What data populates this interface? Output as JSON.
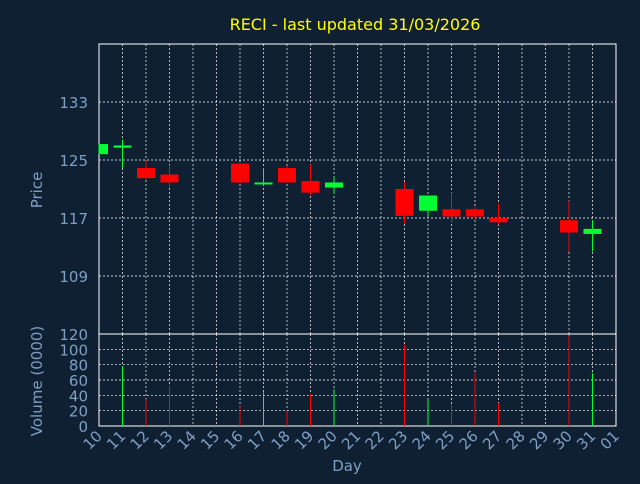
{
  "title": "RECI - last updated 31/03/2026",
  "colors": {
    "background": "#102033",
    "title": "#ffff00",
    "axis_text": "#7f9fc4",
    "grid": "#ffffff",
    "up": "#00ff33",
    "down": "#ff0000"
  },
  "chart_data": [
    {
      "type": "candlestick",
      "ylabel": "Price",
      "ylim": [
        101,
        141
      ],
      "yticks": [
        109,
        117,
        125,
        133
      ],
      "grid": true,
      "x_dates": [
        "10",
        "11",
        "12",
        "13",
        "14",
        "15",
        "16",
        "17",
        "18",
        "19",
        "20",
        "21",
        "22",
        "23",
        "24",
        "25",
        "26",
        "27",
        "28",
        "29",
        "30",
        "31",
        "01"
      ],
      "candles": [
        {
          "day": "10",
          "open": 125.8,
          "high": 127.2,
          "low": 125.8,
          "close": 127.2
        },
        {
          "day": "11",
          "open": 126.7,
          "high": 127.8,
          "low": 123.9,
          "close": 127.0
        },
        {
          "day": "12",
          "open": 123.9,
          "high": 124.9,
          "low": 122.3,
          "close": 122.5
        },
        {
          "day": "13",
          "open": 123.0,
          "high": 124.3,
          "low": 121.2,
          "close": 121.9
        },
        {
          "day": "16",
          "open": 124.5,
          "high": 124.5,
          "low": 121.7,
          "close": 121.9
        },
        {
          "day": "17",
          "open": 121.7,
          "high": 123.9,
          "low": 121.4,
          "close": 121.9
        },
        {
          "day": "18",
          "open": 123.9,
          "high": 124.2,
          "low": 121.9,
          "close": 121.9
        },
        {
          "day": "19",
          "open": 122.1,
          "high": 124.4,
          "low": 120.2,
          "close": 120.5
        },
        {
          "day": "20",
          "open": 121.2,
          "high": 122.7,
          "low": 120.3,
          "close": 121.9
        },
        {
          "day": "23",
          "open": 121.0,
          "high": 122.0,
          "low": 116.2,
          "close": 117.3
        },
        {
          "day": "24",
          "open": 118.0,
          "high": 120.1,
          "low": 117.1,
          "close": 120.1
        },
        {
          "day": "25",
          "open": 118.2,
          "high": 120.5,
          "low": 116.5,
          "close": 117.2
        },
        {
          "day": "26",
          "open": 118.2,
          "high": 118.5,
          "low": 116.8,
          "close": 117.2
        },
        {
          "day": "27",
          "open": 117.0,
          "high": 119.0,
          "low": 116.1,
          "close": 116.4
        },
        {
          "day": "30",
          "open": 116.7,
          "high": 119.4,
          "low": 112.3,
          "close": 115.0
        },
        {
          "day": "31",
          "open": 114.8,
          "high": 116.7,
          "low": 112.4,
          "close": 115.5
        }
      ]
    },
    {
      "type": "bar",
      "ylabel": "Volume (0000)",
      "xlabel": "Day",
      "ylim": [
        0,
        120
      ],
      "yticks": [
        0,
        20,
        40,
        60,
        80,
        100,
        120
      ],
      "categories": [
        "10",
        "11",
        "12",
        "13",
        "14",
        "15",
        "16",
        "17",
        "18",
        "19",
        "20",
        "21",
        "22",
        "23",
        "24",
        "25",
        "26",
        "27",
        "28",
        "29",
        "30",
        "31",
        "01"
      ],
      "volumes": [
        {
          "day": "11",
          "value": 78,
          "direction": "up"
        },
        {
          "day": "12",
          "value": 35,
          "direction": "down"
        },
        {
          "day": "13",
          "value": 53,
          "direction": "down"
        },
        {
          "day": "16",
          "value": 25,
          "direction": "down"
        },
        {
          "day": "17",
          "value": 44,
          "direction": "up"
        },
        {
          "day": "18",
          "value": 20,
          "direction": "down"
        },
        {
          "day": "19",
          "value": 42,
          "direction": "down"
        },
        {
          "day": "20",
          "value": 48,
          "direction": "up"
        },
        {
          "day": "23",
          "value": 106,
          "direction": "down"
        },
        {
          "day": "24",
          "value": 35,
          "direction": "up"
        },
        {
          "day": "25",
          "value": 28,
          "direction": "down"
        },
        {
          "day": "26",
          "value": 69,
          "direction": "down"
        },
        {
          "day": "27",
          "value": 30,
          "direction": "down"
        },
        {
          "day": "30",
          "value": 118,
          "direction": "down"
        },
        {
          "day": "31",
          "value": 69,
          "direction": "up"
        }
      ]
    }
  ]
}
